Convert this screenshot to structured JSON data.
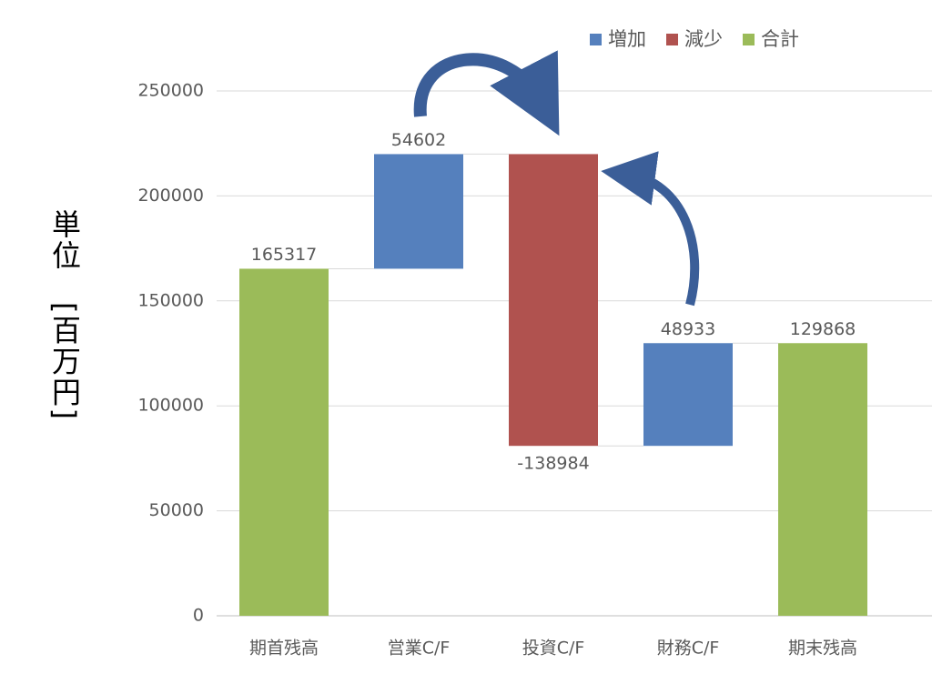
{
  "chart_data": {
    "type": "waterfall",
    "ylabel": "単位　[百万円]",
    "categories": [
      "期首残高",
      "営業C/F",
      "投資C/F",
      "財務C/F",
      "期末残高"
    ],
    "series": [
      {
        "name": "増加",
        "color": "#5580bd",
        "values": [
          null,
          54602,
          null,
          48933,
          null
        ]
      },
      {
        "name": "減少",
        "color": "#b0524f",
        "values": [
          null,
          null,
          -138984,
          null,
          null
        ]
      },
      {
        "name": "合計",
        "color": "#9bbb59",
        "values": [
          165317,
          null,
          null,
          null,
          129868
        ]
      }
    ],
    "total_series": "合計",
    "ylim": [
      0,
      250000
    ],
    "yticks": [
      0,
      50000,
      100000,
      150000,
      200000,
      250000
    ],
    "grid": true,
    "legend": "top-right"
  }
}
